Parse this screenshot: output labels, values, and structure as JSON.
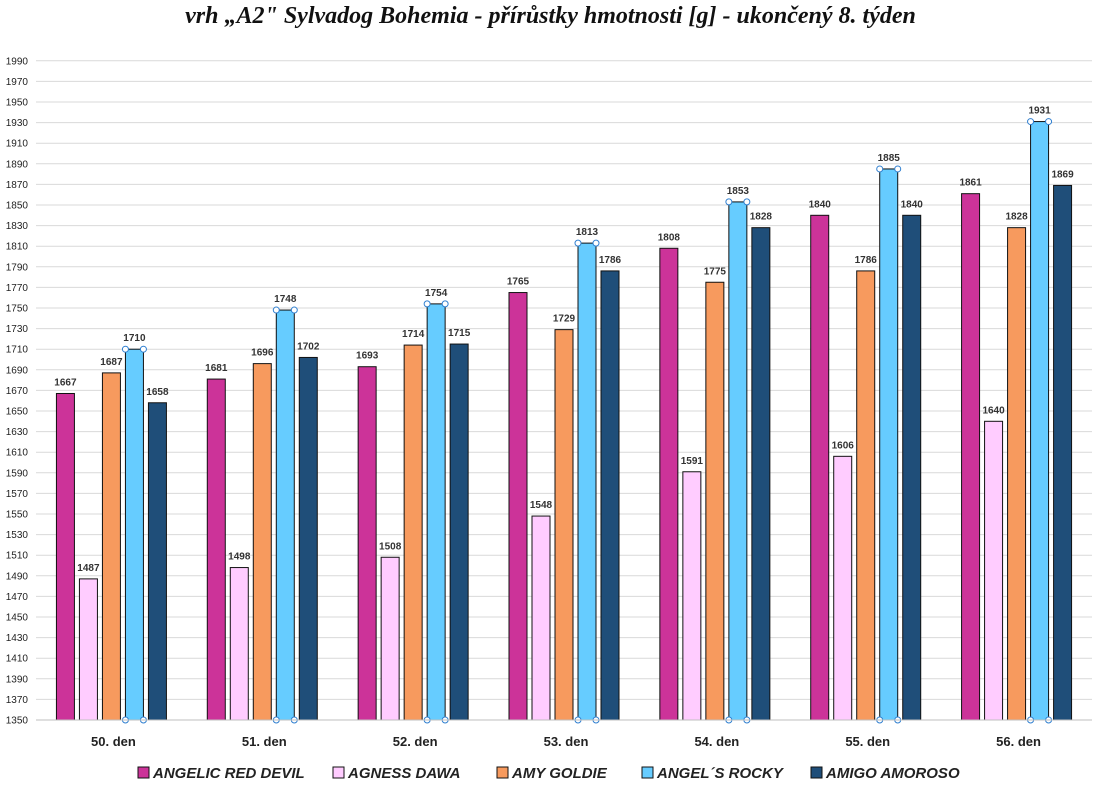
{
  "chart_data": {
    "type": "bar",
    "title": "vrh „A2\" Sylvadog Bohemia - přírůstky hmotnosti [g] - ukončený 8. týden",
    "xlabel": "",
    "ylabel": "",
    "ylim": [
      1350,
      2000
    ],
    "ytick_step": 20,
    "grid": true,
    "legend_position": "bottom",
    "categories": [
      "50. den",
      "51. den",
      "52. den",
      "53. den",
      "54. den",
      "55. den",
      "56. den"
    ],
    "series": [
      {
        "name": "ANGELIC RED DEVIL",
        "color": "#CC3399",
        "values": [
          1667,
          1681,
          1693,
          1765,
          1808,
          1840,
          1861
        ]
      },
      {
        "name": "AGNESS DAWA",
        "color": "#FFCCFF",
        "values": [
          1487,
          1498,
          1508,
          1548,
          1591,
          1606,
          1640
        ]
      },
      {
        "name": "AMY GOLDIE",
        "color": "#F79A5E",
        "values": [
          1687,
          1696,
          1714,
          1729,
          1775,
          1786,
          1828
        ]
      },
      {
        "name": "ANGEL´S ROCKY",
        "color": "#66CCFF",
        "values": [
          1710,
          1748,
          1754,
          1813,
          1853,
          1885,
          1931
        ]
      },
      {
        "name": "AMIGO AMOROSO",
        "color": "#1F4E79",
        "values": [
          1658,
          1702,
          1715,
          1786,
          1828,
          1840,
          1869
        ]
      }
    ]
  }
}
